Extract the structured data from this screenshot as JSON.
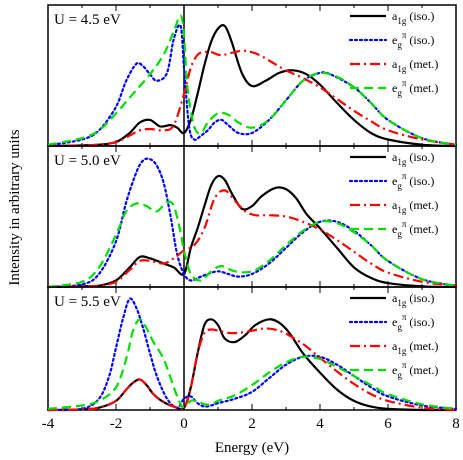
{
  "chart_data": {
    "type": "line",
    "xlabel": "Energy (eV)",
    "ylabel": "Intensity in arbitrary units",
    "xlim": [
      -4,
      8
    ],
    "x_ticks": [
      -4,
      -2,
      0,
      2,
      4,
      6,
      8
    ],
    "x_tick_labels": [
      "-4",
      "-2",
      "0",
      "2",
      "4",
      "6",
      "8"
    ],
    "vertical_line_at": 0,
    "legend_placement": "top-right of each panel",
    "grid": false,
    "legend": [
      {
        "main": "a",
        "sub": "1g",
        "sup": "",
        "note": "(iso.)",
        "color": "#000000",
        "style": "solid"
      },
      {
        "main": "e",
        "sub": "g",
        "sup": "π",
        "note": "(iso.)",
        "color": "#0000ff",
        "style": "dotted"
      },
      {
        "main": "a",
        "sub": "1g",
        "sup": "",
        "note": "(met.)",
        "color": "#ff0000",
        "style": "dashdot"
      },
      {
        "main": "e",
        "sub": "g",
        "sup": "π",
        "note": "(met.)",
        "color": "#00dd00",
        "style": "dashed"
      }
    ],
    "panels": [
      {
        "label": "U = 4.5 eV",
        "ylim": [
          0,
          1.05
        ],
        "series": [
          {
            "key": "a1g_iso",
            "x": [
              -4,
              -3,
              -2.5,
              -2,
              -1.6,
              -1.3,
              -1.0,
              -0.7,
              -0.4,
              -0.2,
              0,
              0.2,
              0.4,
              0.6,
              0.8,
              1.0,
              1.2,
              1.4,
              1.7,
              2.0,
              2.4,
              2.8,
              3.2,
              3.6,
              4.0,
              4.5,
              5,
              5.5,
              6,
              7,
              8
            ],
            "y": [
              0,
              0.005,
              0.01,
              0.03,
              0.1,
              0.18,
              0.2,
              0.15,
              0.16,
              0.14,
              0.1,
              0.2,
              0.4,
              0.62,
              0.8,
              0.9,
              0.92,
              0.8,
              0.56,
              0.46,
              0.5,
              0.56,
              0.58,
              0.55,
              0.47,
              0.33,
              0.2,
              0.1,
              0.05,
              0.01,
              0
            ]
          },
          {
            "key": "eg_iso",
            "x": [
              -4,
              -3,
              -2.5,
              -2,
              -1.7,
              -1.4,
              -1.2,
              -1.0,
              -0.8,
              -0.5,
              -0.3,
              -0.1,
              0,
              0.15,
              0.3,
              0.5,
              0.7,
              0.9,
              1.1,
              1.3,
              1.6,
              2,
              2.5,
              3,
              3.5,
              4,
              4.3,
              5,
              5.5,
              6,
              7,
              8
            ],
            "y": [
              0.005,
              0.05,
              0.12,
              0.3,
              0.5,
              0.63,
              0.61,
              0.55,
              0.5,
              0.56,
              0.82,
              0.92,
              0.6,
              0.15,
              0.05,
              0.08,
              0.12,
              0.18,
              0.2,
              0.16,
              0.1,
              0.1,
              0.2,
              0.35,
              0.5,
              0.56,
              0.55,
              0.45,
              0.33,
              0.2,
              0.06,
              0.01
            ]
          },
          {
            "key": "a1g_met",
            "x": [
              -4,
              -3,
              -2.5,
              -2,
              -1.6,
              -1.3,
              -1.0,
              -0.6,
              -0.3,
              0,
              0.2,
              0.4,
              0.6,
              0.8,
              1.0,
              1.2,
              1.5,
              1.8,
              2.2,
              2.6,
              3.0,
              3.5,
              4,
              4.5,
              5,
              5.5,
              6,
              7,
              8
            ],
            "y": [
              0,
              0.005,
              0.01,
              0.03,
              0.08,
              0.12,
              0.13,
              0.12,
              0.16,
              0.4,
              0.6,
              0.7,
              0.72,
              0.72,
              0.7,
              0.7,
              0.72,
              0.73,
              0.7,
              0.64,
              0.58,
              0.52,
              0.45,
              0.36,
              0.27,
              0.19,
              0.12,
              0.05,
              0.01
            ]
          },
          {
            "key": "eg_met",
            "x": [
              -4,
              -3,
              -2.5,
              -2,
              -1.5,
              -1.0,
              -0.6,
              -0.3,
              -0.1,
              0,
              0.1,
              0.3,
              0.5,
              0.7,
              1.0,
              1.3,
              1.6,
              2,
              2.5,
              3,
              3.5,
              4,
              4.5,
              5,
              5.5,
              6,
              7,
              8
            ],
            "y": [
              0.01,
              0.06,
              0.12,
              0.25,
              0.4,
              0.55,
              0.7,
              0.88,
              1.0,
              0.85,
              0.45,
              0.15,
              0.1,
              0.18,
              0.25,
              0.24,
              0.18,
              0.14,
              0.2,
              0.35,
              0.5,
              0.56,
              0.53,
              0.45,
              0.33,
              0.2,
              0.06,
              0.01
            ]
          }
        ]
      },
      {
        "label": "U = 5.0 eV",
        "ylim": [
          0,
          1.05
        ],
        "series": [
          {
            "key": "a1g_iso",
            "x": [
              -4,
              -3,
              -2.5,
              -2,
              -1.6,
              -1.3,
              -1.0,
              -0.6,
              -0.3,
              0,
              0.2,
              0.4,
              0.6,
              0.8,
              1.0,
              1.2,
              1.4,
              1.7,
              2.0,
              2.3,
              2.7,
              3.0,
              3.3,
              3.6,
              4.0,
              4.5,
              5,
              5.5,
              6,
              7,
              8
            ],
            "y": [
              0,
              0.005,
              0.01,
              0.05,
              0.15,
              0.23,
              0.22,
              0.18,
              0.15,
              0.1,
              0.3,
              0.45,
              0.62,
              0.78,
              0.85,
              0.82,
              0.72,
              0.6,
              0.62,
              0.7,
              0.76,
              0.75,
              0.68,
              0.56,
              0.45,
              0.3,
              0.15,
              0.07,
              0.03,
              0.005,
              0
            ]
          },
          {
            "key": "eg_iso",
            "x": [
              -4,
              -3,
              -2.5,
              -2,
              -1.7,
              -1.4,
              -1.2,
              -1.0,
              -0.8,
              -0.6,
              -0.4,
              -0.2,
              0,
              0.2,
              0.5,
              0.7,
              1.0,
              1.3,
              1.6,
              2,
              2.5,
              3,
              3.5,
              4,
              4.5,
              5,
              5.5,
              6,
              7,
              8
            ],
            "y": [
              0,
              0.02,
              0.1,
              0.35,
              0.65,
              0.88,
              0.97,
              0.98,
              0.93,
              0.8,
              0.55,
              0.25,
              0.1,
              0.05,
              0.08,
              0.1,
              0.12,
              0.1,
              0.08,
              0.1,
              0.18,
              0.3,
              0.42,
              0.5,
              0.5,
              0.43,
              0.32,
              0.2,
              0.06,
              0.01
            ]
          },
          {
            "key": "a1g_met",
            "x": [
              -4,
              -3,
              -2.5,
              -2,
              -1.6,
              -1.3,
              -1.0,
              -0.6,
              -0.3,
              0,
              0.3,
              0.6,
              0.9,
              1.2,
              1.5,
              1.8,
              2.1,
              2.5,
              3.0,
              3.5,
              4,
              4.5,
              5,
              5.5,
              6,
              7,
              8
            ],
            "y": [
              0,
              0.005,
              0.01,
              0.04,
              0.13,
              0.2,
              0.2,
              0.18,
              0.22,
              0.28,
              0.32,
              0.45,
              0.68,
              0.74,
              0.66,
              0.58,
              0.55,
              0.55,
              0.54,
              0.5,
              0.44,
              0.36,
              0.27,
              0.18,
              0.11,
              0.04,
              0.01
            ]
          },
          {
            "key": "eg_met",
            "x": [
              -4,
              -3,
              -2.5,
              -2,
              -1.7,
              -1.4,
              -1.1,
              -0.8,
              -0.5,
              -0.3,
              -0.1,
              0,
              0.2,
              0.5,
              0.8,
              1.1,
              1.5,
              2,
              2.5,
              3,
              3.5,
              4,
              4.5,
              5,
              5.5,
              6,
              7,
              8
            ],
            "y": [
              0,
              0.04,
              0.15,
              0.4,
              0.58,
              0.64,
              0.62,
              0.58,
              0.65,
              0.62,
              0.42,
              0.28,
              0.1,
              0.05,
              0.12,
              0.16,
              0.12,
              0.12,
              0.2,
              0.32,
              0.43,
              0.5,
              0.49,
              0.42,
              0.32,
              0.2,
              0.06,
              0.01
            ]
          }
        ]
      },
      {
        "label": "U = 5.5 eV",
        "ylim": [
          0,
          1.05
        ],
        "series": [
          {
            "key": "a1g_iso",
            "x": [
              -4,
              -3,
              -2.5,
              -2,
              -1.7,
              -1.5,
              -1.3,
              -1.1,
              -0.9,
              -0.6,
              -0.3,
              0,
              0.2,
              0.4,
              0.6,
              0.8,
              1.0,
              1.2,
              1.5,
              1.8,
              2.1,
              2.5,
              2.8,
              3.1,
              3.5,
              4,
              4.5,
              5,
              5.5,
              6,
              7,
              8
            ],
            "y": [
              0,
              0.005,
              0.02,
              0.08,
              0.18,
              0.24,
              0.27,
              0.22,
              0.14,
              0.07,
              0.03,
              0.02,
              0.2,
              0.5,
              0.75,
              0.8,
              0.75,
              0.63,
              0.6,
              0.66,
              0.75,
              0.8,
              0.77,
              0.68,
              0.5,
              0.33,
              0.18,
              0.08,
              0.03,
              0.01,
              0,
              0
            ]
          },
          {
            "key": "eg_iso",
            "x": [
              -4,
              -3,
              -2.5,
              -2.2,
              -2,
              -1.8,
              -1.6,
              -1.4,
              -1.2,
              -1.0,
              -0.8,
              -0.5,
              -0.2,
              0,
              0.2,
              0.4,
              0.6,
              0.8,
              1.0,
              1.5,
              2,
              2.5,
              3,
              3.5,
              4,
              4.5,
              5,
              5.5,
              6,
              7,
              8
            ],
            "y": [
              0,
              0.01,
              0.1,
              0.3,
              0.55,
              0.8,
              0.98,
              0.9,
              0.72,
              0.5,
              0.3,
              0.1,
              0.02,
              0.1,
              0.12,
              0.06,
              0.03,
              0.04,
              0.06,
              0.1,
              0.16,
              0.28,
              0.4,
              0.47,
              0.47,
              0.4,
              0.3,
              0.2,
              0.12,
              0.04,
              0.01
            ]
          },
          {
            "key": "a1g_met",
            "x": [
              -4,
              -3,
              -2.5,
              -2,
              -1.7,
              -1.5,
              -1.3,
              -1.1,
              -0.9,
              -0.6,
              -0.3,
              0,
              0.2,
              0.4,
              0.6,
              0.8,
              1.0,
              1.3,
              1.6,
              2.0,
              2.4,
              2.8,
              3.2,
              3.6,
              4,
              4.5,
              5,
              5.5,
              6,
              7,
              8
            ],
            "y": [
              0,
              0.005,
              0.02,
              0.08,
              0.18,
              0.24,
              0.27,
              0.22,
              0.14,
              0.07,
              0.03,
              0.02,
              0.2,
              0.5,
              0.68,
              0.71,
              0.7,
              0.68,
              0.68,
              0.7,
              0.72,
              0.7,
              0.64,
              0.56,
              0.46,
              0.34,
              0.23,
              0.14,
              0.08,
              0.02,
              0
            ]
          },
          {
            "key": "eg_met",
            "x": [
              -4,
              -3,
              -2.5,
              -2,
              -1.7,
              -1.5,
              -1.3,
              -1.1,
              -0.9,
              -0.6,
              -0.3,
              -0.1,
              0,
              0.2,
              0.4,
              0.6,
              0.8,
              1.0,
              1.5,
              2,
              2.5,
              3,
              3.5,
              4,
              4.5,
              5,
              5.5,
              6,
              7,
              8
            ],
            "y": [
              0.01,
              0.04,
              0.08,
              0.2,
              0.45,
              0.7,
              0.8,
              0.72,
              0.6,
              0.45,
              0.2,
              0.05,
              0.03,
              0.08,
              0.08,
              0.05,
              0.05,
              0.08,
              0.13,
              0.22,
              0.33,
              0.42,
              0.47,
              0.45,
              0.38,
              0.3,
              0.22,
              0.14,
              0.05,
              0.01
            ]
          }
        ]
      }
    ]
  }
}
